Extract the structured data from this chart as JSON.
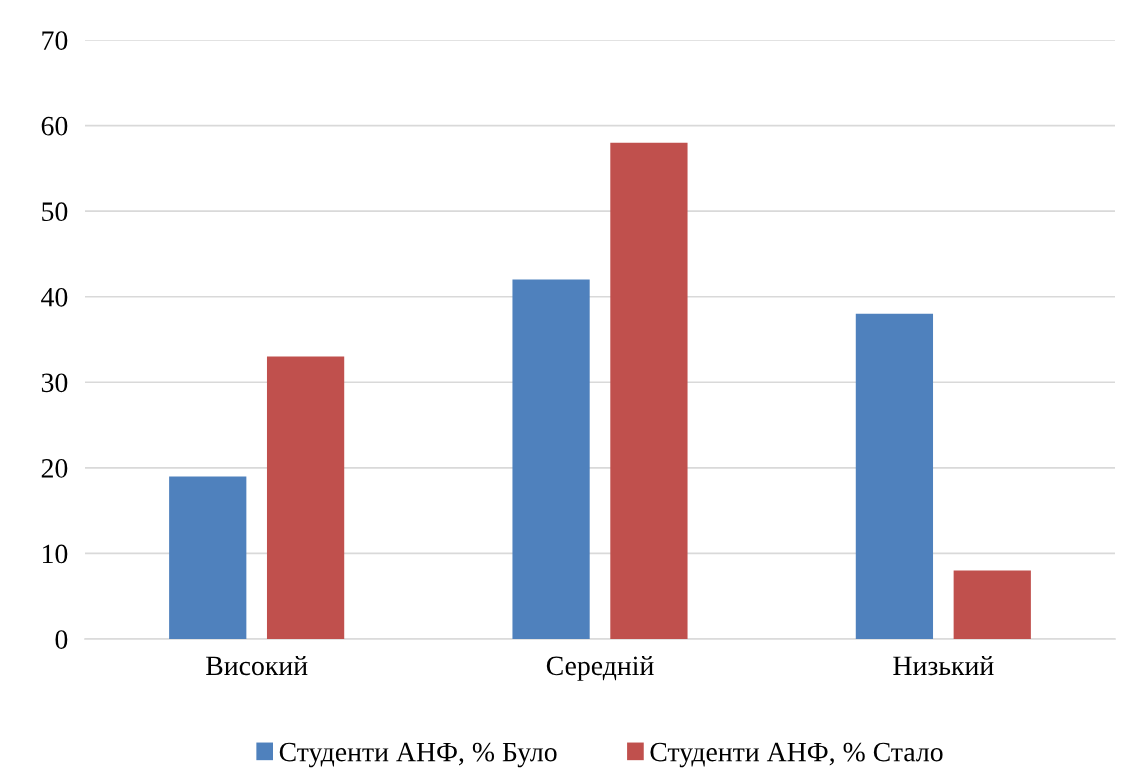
{
  "chart_data": {
    "type": "bar",
    "categories": [
      "Високий",
      "Середній",
      "Низький"
    ],
    "series": [
      {
        "name": "Студенти АНФ, % Було",
        "color": "#4f81bd",
        "values": [
          19,
          42,
          38
        ]
      },
      {
        "name": "Студенти АНФ, % Стало",
        "color": "#c0504d",
        "values": [
          33,
          58,
          8
        ]
      }
    ],
    "ylim": [
      0,
      70
    ],
    "yticks": [
      0,
      10,
      20,
      30,
      40,
      50,
      60,
      70
    ],
    "grid": "y",
    "legend": "bottom"
  }
}
